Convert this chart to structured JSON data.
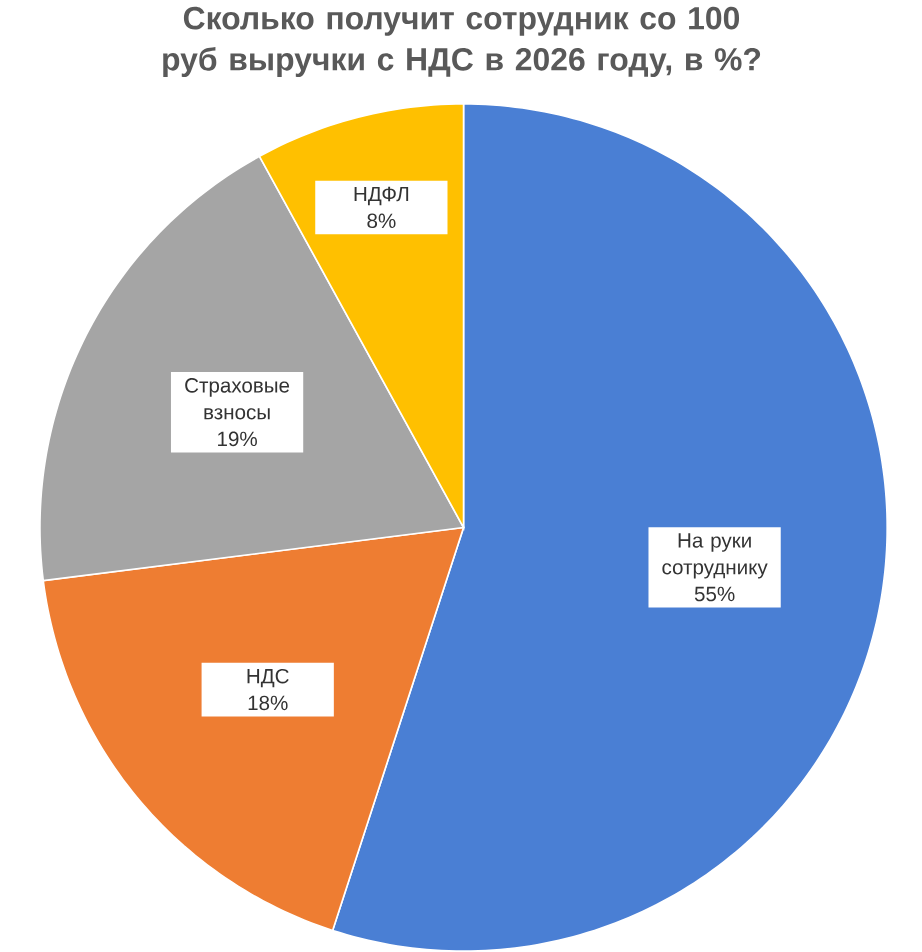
{
  "chart_data": {
    "type": "pie",
    "title": "Сколько получит сотрудник со 100 руб выручки с НДС в 2026 году, в %?",
    "categories": [
      "На руки сотруднику",
      "НДС",
      "Страховые взносы",
      "НДФЛ"
    ],
    "values": [
      55,
      18,
      19,
      8
    ],
    "colors": [
      "#4a7fd4",
      "#ee7d32",
      "#a5a5a5",
      "#ffc000"
    ],
    "value_labels": [
      "55%",
      "18%",
      "19%",
      "8%"
    ]
  }
}
